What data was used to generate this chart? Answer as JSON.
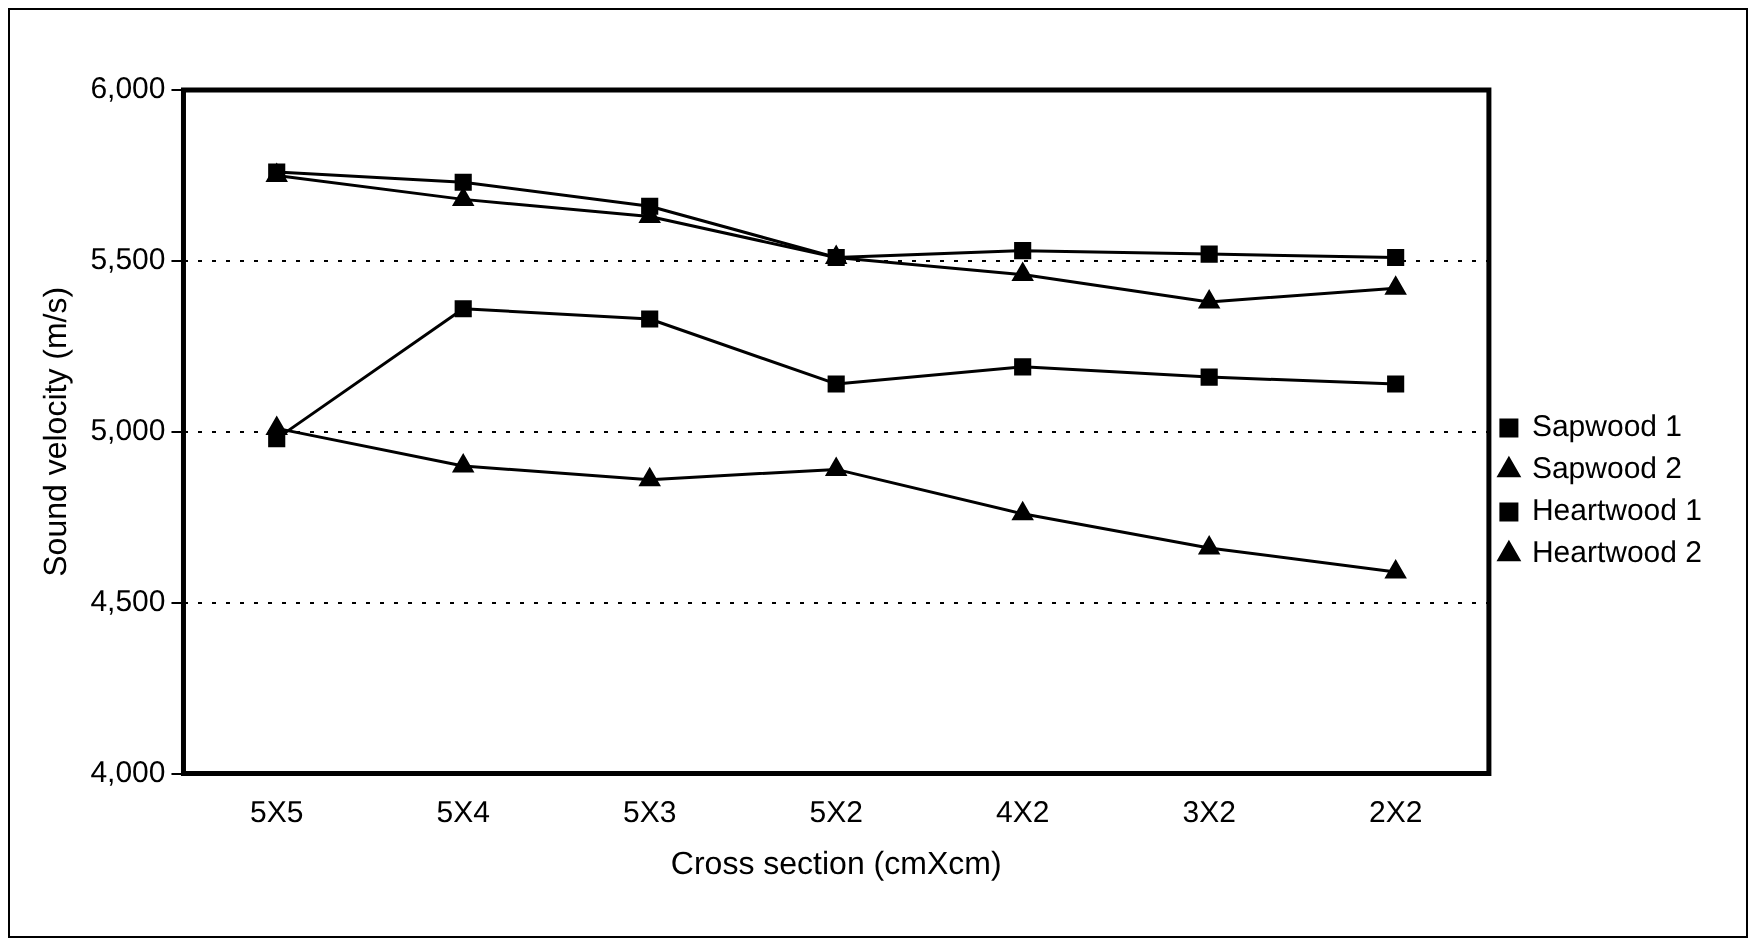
{
  "chart_data": {
    "type": "line",
    "xlabel": "Cross section (cmXcm)",
    "ylabel": "Sound velocity (m/s)",
    "categories": [
      "5X5",
      "5X4",
      "5X3",
      "5X2",
      "4X2",
      "3X2",
      "2X2"
    ],
    "series": [
      {
        "name": "Sapwood 1",
        "color": "#000000",
        "marker": "square",
        "values": [
          4980,
          5360,
          5330,
          5140,
          5190,
          5160,
          5140
        ]
      },
      {
        "name": "Sapwood 2",
        "color": "#000000",
        "marker": "triangle",
        "values": [
          5010,
          4900,
          4860,
          4890,
          4760,
          4660,
          4590
        ]
      },
      {
        "name": "Heartwood 1",
        "color": "#000000",
        "marker": "square",
        "values": [
          5760,
          5730,
          5660,
          5510,
          5530,
          5520,
          5510
        ]
      },
      {
        "name": "Heartwood 2",
        "color": "#000000",
        "marker": "triangle",
        "values": [
          5750,
          5680,
          5630,
          5510,
          5460,
          5380,
          5420
        ]
      }
    ],
    "ylim": [
      4000,
      6000
    ],
    "yticks": [
      {
        "value": 4000,
        "label": "4,000"
      },
      {
        "value": 4500,
        "label": "4,500"
      },
      {
        "value": 5000,
        "label": "5,000"
      },
      {
        "value": 5500,
        "label": "5,500"
      },
      {
        "value": 6000,
        "label": "6,000"
      }
    ],
    "grid": "y",
    "legend": "right",
    "line_style": "solid"
  }
}
